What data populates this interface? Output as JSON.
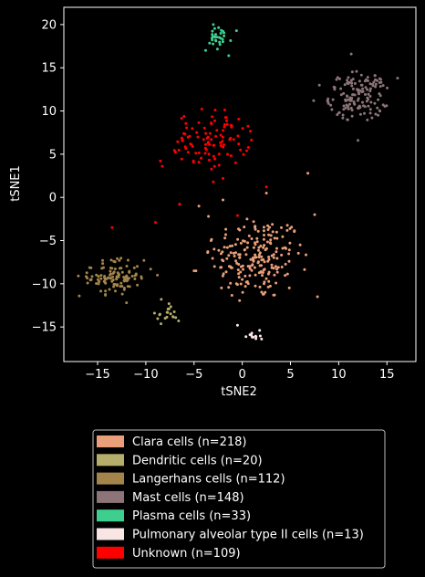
{
  "chart_data": {
    "type": "scatter",
    "xlabel": "tSNE2",
    "ylabel": "tSNE1",
    "xlim": [
      -18.5,
      18.0
    ],
    "ylim": [
      -19.0,
      22.0
    ],
    "x_ticks": [
      -15,
      -10,
      -5,
      0,
      5,
      10,
      15
    ],
    "y_ticks": [
      -15,
      -10,
      -5,
      0,
      5,
      10,
      15,
      20
    ],
    "x_tick_labels": [
      "−15",
      "−10",
      "−5",
      "0",
      "5",
      "10",
      "15"
    ],
    "y_tick_labels": [
      "−15",
      "−10",
      "−5",
      "0",
      "5",
      "10",
      "15",
      "20"
    ],
    "grid": false,
    "legend_placement": "bottom-center (below plot)",
    "background": "#000000",
    "series": [
      {
        "name": "Clara cells (n=218)",
        "color": "#e9a07a",
        "n": 218,
        "center": [
          1.5,
          -7.0
        ],
        "spread": [
          3.2,
          3.3
        ],
        "shape": "cluster",
        "extra_points": [
          [
            -6.5,
            -0.8
          ],
          [
            -4.5,
            -1.0
          ],
          [
            -2.0,
            -0.3
          ],
          [
            2.5,
            0.5
          ],
          [
            6.8,
            2.8
          ],
          [
            7.5,
            -2.0
          ],
          [
            -3.5,
            -2.2
          ],
          [
            0.5,
            -2.5
          ],
          [
            -5.0,
            -8.5
          ],
          [
            -4.8,
            -8.5
          ],
          [
            6.0,
            -5.5
          ],
          [
            7.8,
            -11.5
          ]
        ]
      },
      {
        "name": "Dendritic cells (n=20)",
        "color": "#b5ad6a",
        "n": 20,
        "center": [
          -7.8,
          -13.7
        ],
        "spread": [
          0.7,
          0.7
        ],
        "shape": "cluster",
        "extra_points": [
          [
            -8.4,
            -11.8
          ],
          [
            -7.6,
            -12.3
          ],
          [
            -6.6,
            -14.3
          ],
          [
            -9.1,
            -13.4
          ]
        ]
      },
      {
        "name": "Langerhans cells (n=112)",
        "color": "#a3844a",
        "n": 112,
        "center": [
          -13.3,
          -9.2
        ],
        "spread": [
          1.8,
          1.4
        ],
        "shape": "cluster",
        "extra_points": [
          [
            -16.9,
            -11.4
          ],
          [
            -17.0,
            -9.1
          ],
          [
            -10.2,
            -7.3
          ],
          [
            -9.5,
            -8.3
          ],
          [
            -8.8,
            -9.0
          ],
          [
            -12.0,
            -12.2
          ]
        ]
      },
      {
        "name": "Mast cells (n=148)",
        "color": "#8c7479",
        "n": 148,
        "center": [
          12.0,
          11.7
        ],
        "spread": [
          2.0,
          1.8
        ],
        "shape": "cluster",
        "extra_points": [
          [
            7.4,
            11.2
          ],
          [
            8.0,
            13.0
          ],
          [
            16.1,
            13.8
          ],
          [
            11.3,
            16.6
          ],
          [
            12.0,
            6.6
          ]
        ]
      },
      {
        "name": "Plasma cells (n=33)",
        "color": "#3ecf8e",
        "n": 33,
        "center": [
          -2.4,
          18.3
        ],
        "spread": [
          0.9,
          0.9
        ],
        "shape": "cluster",
        "extra_points": [
          [
            -3.0,
            20.0
          ],
          [
            -1.4,
            16.4
          ],
          [
            -3.8,
            17.0
          ],
          [
            -0.6,
            19.3
          ]
        ]
      },
      {
        "name": "Pulmonary alveolar type II cells (n=13)",
        "color": "#f9e6e4",
        "n": 13,
        "center": [
          1.0,
          -16.1
        ],
        "spread": [
          0.6,
          0.4
        ],
        "shape": "cluster",
        "extra_points": [
          [
            1.8,
            -15.4
          ],
          [
            2.0,
            -16.4
          ],
          [
            -0.5,
            -14.8
          ]
        ]
      },
      {
        "name": "Unknown (n=109)",
        "color": "#ff0000",
        "n": 109,
        "center": [
          -3.2,
          6.8
        ],
        "spread": [
          2.6,
          2.2
        ],
        "shape": "cluster",
        "extra_points": [
          [
            -8.5,
            4.2
          ],
          [
            -8.3,
            3.6
          ],
          [
            2.5,
            1.2
          ],
          [
            -2.0,
            2.2
          ],
          [
            -3.0,
            1.8
          ],
          [
            -6.5,
            -0.8
          ],
          [
            -13.5,
            -3.5
          ],
          [
            -9.0,
            -2.9
          ],
          [
            -0.5,
            -2.1
          ]
        ]
      }
    ]
  }
}
